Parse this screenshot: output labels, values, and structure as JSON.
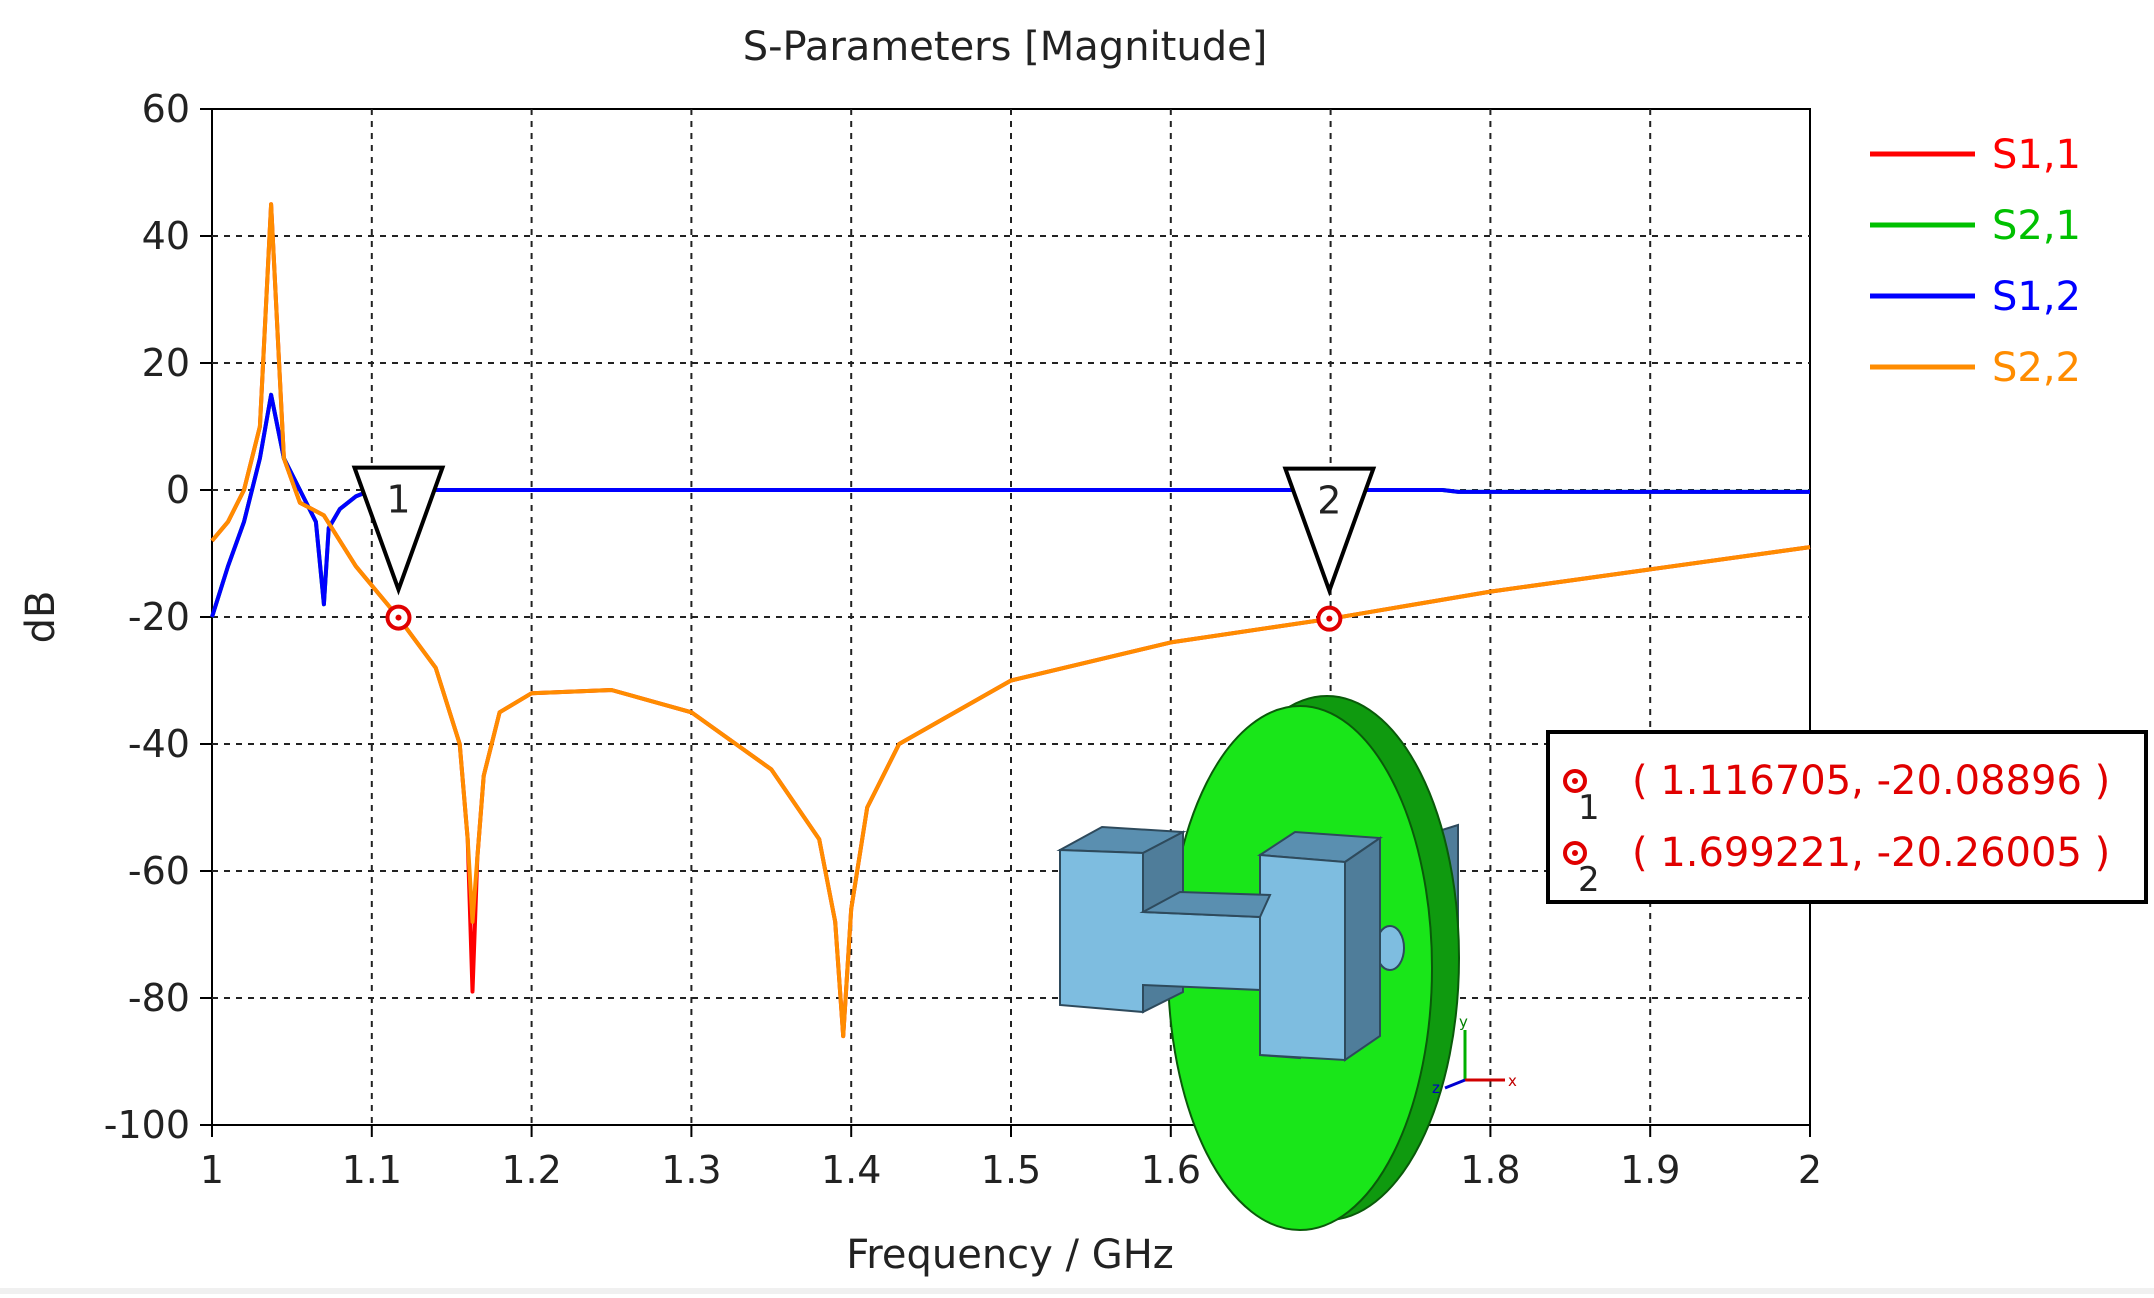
{
  "chart_data": {
    "type": "line",
    "title": "S-Parameters [Magnitude]",
    "xlabel": "Frequency / GHz",
    "ylabel": "dB",
    "xlim": [
      1,
      2
    ],
    "ylim": [
      -100,
      60
    ],
    "xticks": [
      1,
      1.1,
      1.2,
      1.3,
      1.4,
      1.5,
      1.6,
      1.7,
      1.8,
      1.9,
      2
    ],
    "xtick_labels": [
      "1",
      "1.1",
      "1.2",
      "1.3",
      "1.4",
      "1.5",
      "1.6",
      "1.7",
      "1.8",
      "1.9",
      "2"
    ],
    "yticks": [
      60,
      40,
      20,
      0,
      -20,
      -40,
      -60,
      -80,
      -100
    ],
    "ytick_labels": [
      "60",
      "40",
      "20",
      "0",
      "-20",
      "-40",
      "-60",
      "-80",
      "-100"
    ],
    "grid": true,
    "legend_position": "right",
    "series": [
      {
        "name": "S1,1",
        "color": "#ff0000",
        "x": [
          1.0,
          1.01,
          1.02,
          1.03,
          1.037,
          1.045,
          1.055,
          1.07,
          1.09,
          1.1167,
          1.14,
          1.155,
          1.16,
          1.163,
          1.166,
          1.17,
          1.18,
          1.2,
          1.25,
          1.3,
          1.35,
          1.38,
          1.39,
          1.395,
          1.4,
          1.41,
          1.43,
          1.5,
          1.6,
          1.7,
          1.8,
          1.9,
          2.0
        ],
        "y": [
          -8,
          -5,
          0,
          10,
          45,
          5,
          -2,
          -4,
          -12,
          -20.09,
          -28,
          -40,
          -55,
          -79,
          -58,
          -45,
          -35,
          -32,
          -31.5,
          -35,
          -44,
          -55,
          -68,
          -86,
          -66,
          -50,
          -40,
          -30,
          -24,
          -20.26,
          -16,
          -12.5,
          -9
        ]
      },
      {
        "name": "S2,1",
        "color": "#00c000",
        "x": [
          1.0,
          1.01,
          1.02,
          1.03,
          1.037,
          1.045,
          1.055,
          1.065,
          1.07,
          1.073,
          1.08,
          1.09,
          1.1,
          1.2,
          1.3,
          1.4,
          1.5,
          1.6,
          1.7,
          1.77,
          1.78,
          1.9,
          2.0
        ],
        "y": [
          -20,
          -12,
          -5,
          5,
          15,
          5,
          0,
          -5,
          -18,
          -6,
          -3,
          -1,
          0,
          0,
          0,
          0,
          0,
          0,
          0,
          0,
          -0.3,
          -0.3,
          -0.3
        ]
      },
      {
        "name": "S1,2",
        "color": "#0000ff",
        "x": [
          1.0,
          1.01,
          1.02,
          1.03,
          1.037,
          1.045,
          1.055,
          1.065,
          1.07,
          1.073,
          1.08,
          1.09,
          1.1,
          1.2,
          1.3,
          1.4,
          1.5,
          1.6,
          1.7,
          1.77,
          1.78,
          1.9,
          2.0
        ],
        "y": [
          -20,
          -12,
          -5,
          5,
          15,
          5,
          0,
          -5,
          -18,
          -6,
          -3,
          -1,
          0,
          0,
          0,
          0,
          0,
          0,
          0,
          0,
          -0.3,
          -0.3,
          -0.3
        ]
      },
      {
        "name": "S2,2",
        "color": "#ff8c00",
        "x": [
          1.0,
          1.01,
          1.02,
          1.03,
          1.037,
          1.045,
          1.055,
          1.07,
          1.09,
          1.1167,
          1.14,
          1.155,
          1.16,
          1.163,
          1.166,
          1.17,
          1.18,
          1.2,
          1.25,
          1.3,
          1.35,
          1.38,
          1.39,
          1.395,
          1.4,
          1.41,
          1.43,
          1.5,
          1.6,
          1.7,
          1.8,
          1.9,
          2.0
        ],
        "y": [
          -8,
          -5,
          0,
          10,
          45,
          5,
          -2,
          -4,
          -12,
          -20.09,
          -28,
          -40,
          -55,
          -68,
          -58,
          -45,
          -35,
          -32,
          -31.5,
          -35,
          -44,
          -55,
          -68,
          -86,
          -66,
          -50,
          -40,
          -30,
          -24,
          -20.26,
          -16,
          -12.5,
          -9
        ]
      }
    ],
    "markers": [
      {
        "label": "1",
        "x": 1.116705,
        "y": -20.08896,
        "readout": "( 1.116705, -20.08896 )"
      },
      {
        "label": "2",
        "x": 1.699221,
        "y": -20.26005,
        "readout": "( 1.699221, -20.26005 )"
      }
    ]
  },
  "inset": {
    "axis_labels": {
      "x": "x",
      "y": "y",
      "z": "z"
    },
    "colors": {
      "disc": "#19e619",
      "block_front": "#7ebde0",
      "block_top": "#5a8fb0",
      "block_side": "#4f7d9a"
    }
  }
}
